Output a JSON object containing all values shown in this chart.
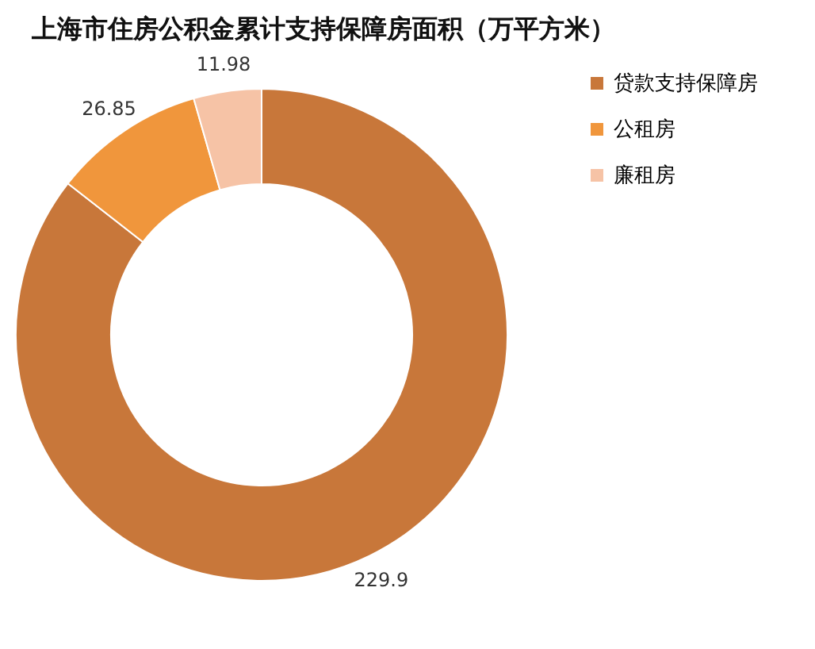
{
  "chart_data": {
    "type": "donut",
    "title": "上海市住房公积金累计支持保障房面积（万平方米）",
    "categories": [
      "贷款支持保障房",
      "公租房",
      "廉租房"
    ],
    "values": [
      229.9,
      26.85,
      11.98
    ],
    "colors": [
      "#c8773a",
      "#f0963c",
      "#f6c3a6"
    ],
    "data_labels": true,
    "legend": "right"
  }
}
